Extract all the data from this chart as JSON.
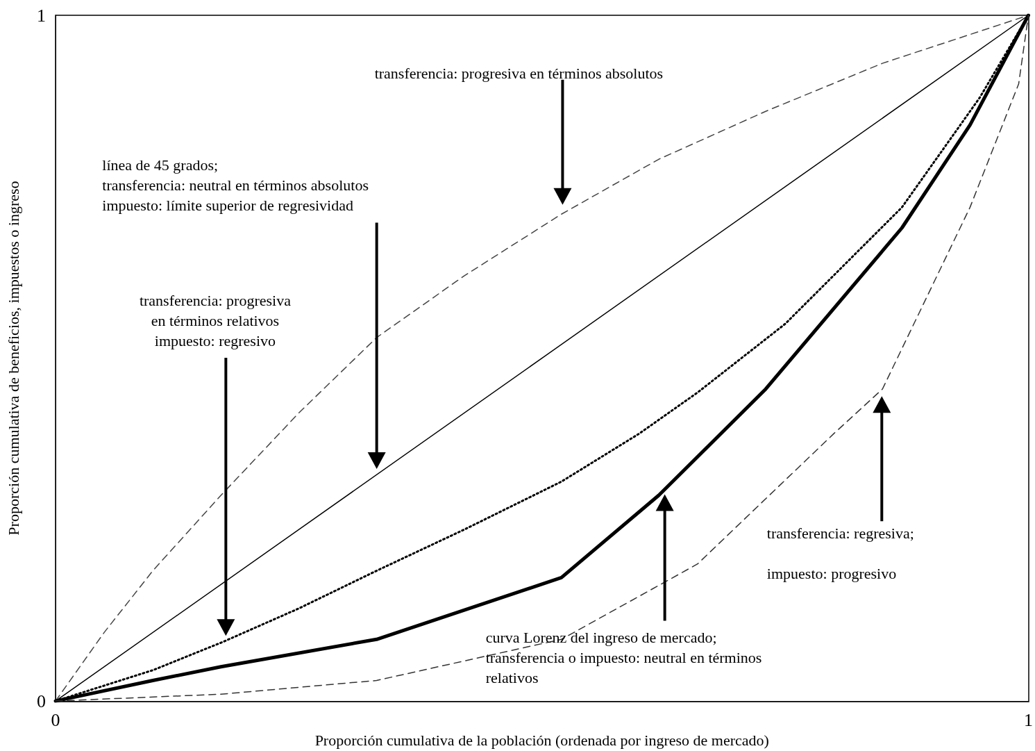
{
  "chart_data": {
    "type": "line",
    "xlabel": "Proporción cumulativa de la población (ordenada por ingreso de mercado)",
    "ylabel": "Proporción cumulativa de beneficios, impuestos o ingreso",
    "xlim": [
      0,
      1
    ],
    "ylim": [
      0,
      1
    ],
    "xticks": [
      0,
      1
    ],
    "yticks": [
      0,
      1
    ],
    "grid": false,
    "marker": "none",
    "series": [
      {
        "color": "#444444",
        "line_style": "dashed",
        "x": [
          0,
          0.05,
          0.1,
          0.17,
          0.25,
          0.33,
          0.42,
          0.52,
          0.62,
          0.73,
          0.85,
          1
        ],
        "values": [
          0,
          0.1,
          0.19,
          0.3,
          0.42,
          0.53,
          0.62,
          0.71,
          0.79,
          0.86,
          0.93,
          1
        ]
      },
      {
        "color": "#000000",
        "line_style": "solid",
        "x": [
          0,
          1
        ],
        "values": [
          0,
          1
        ]
      },
      {
        "color": "#000000",
        "line_style": "dotted",
        "x": [
          0,
          0.1,
          0.17,
          0.25,
          0.33,
          0.42,
          0.52,
          0.6,
          0.66,
          0.75,
          0.87,
          0.95,
          1
        ],
        "values": [
          0,
          0.045,
          0.085,
          0.135,
          0.19,
          0.25,
          0.32,
          0.39,
          0.45,
          0.55,
          0.72,
          0.88,
          1
        ]
      },
      {
        "color": "#000000",
        "line_style": "solid",
        "x": [
          0,
          0.1,
          0.17,
          0.33,
          0.52,
          0.62,
          0.73,
          0.87,
          0.94,
          1
        ],
        "values": [
          0,
          0.03,
          0.05,
          0.09,
          0.18,
          0.3,
          0.455,
          0.69,
          0.84,
          1
        ]
      },
      {
        "color": "#333333",
        "line_style": "dashed",
        "x": [
          0,
          0.17,
          0.33,
          0.52,
          0.66,
          0.8,
          0.85,
          0.94,
          0.99,
          1
        ],
        "values": [
          0,
          0.01,
          0.03,
          0.09,
          0.2,
          0.39,
          0.455,
          0.72,
          0.9,
          1
        ]
      }
    ],
    "annotations": [
      "transferencia: progresiva en términos absolutos",
      "línea de 45 grados;\ntransferencia: neutral en términos absolutos\nimpuesto: límite superior de regresividad",
      "transferencia: progresiva\nen términos relativos\nimpuesto: regresivo",
      "transferencia: regresiva;\n\nimpuesto: progresivo",
      "curva Lorenz del ingreso de mercado;\ntransferencia o impuesto: neutral en términos\nrelativos"
    ]
  }
}
